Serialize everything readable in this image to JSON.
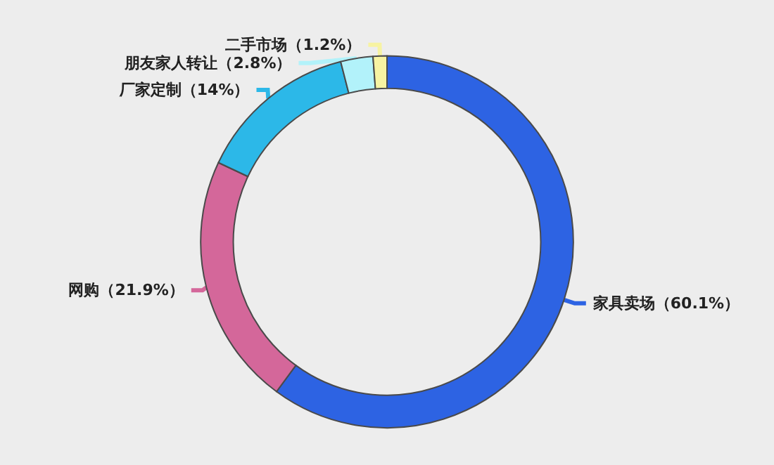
{
  "chart_data": {
    "type": "donut",
    "categories": [
      "家具卖场",
      "网购",
      "厂家定制",
      "朋友家人转让",
      "二手市场"
    ],
    "values": [
      60.1,
      21.9,
      14,
      2.8,
      1.2
    ],
    "colors": [
      "#2d63e3",
      "#d4679a",
      "#2cb8e8",
      "#b2f2fa",
      "#f7f3a2"
    ],
    "value_labels": [
      "（60.1%）",
      "（21.9%）",
      "（14%）",
      "（2.8%）",
      "（1.2%）"
    ],
    "legend": false
  }
}
